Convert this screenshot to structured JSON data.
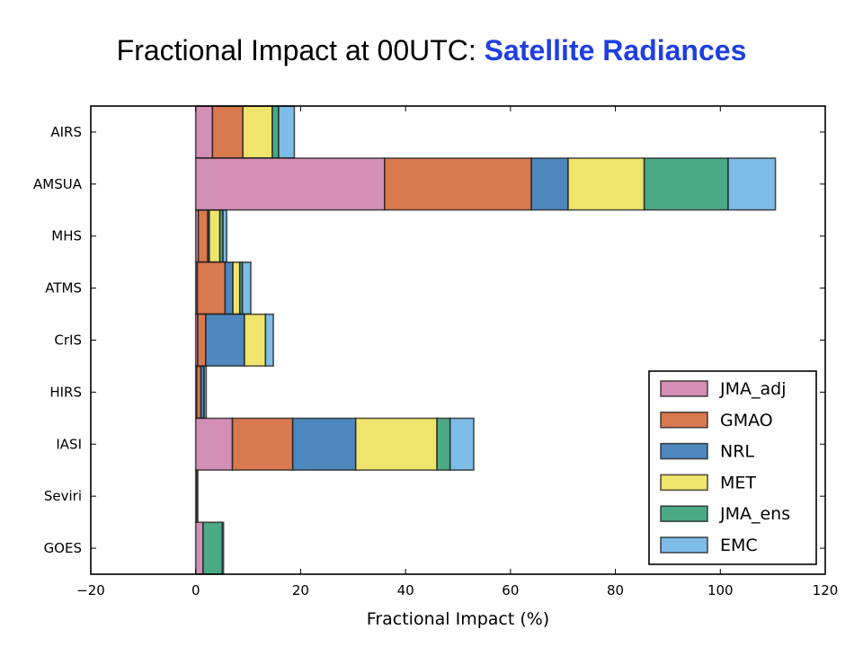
{
  "title": {
    "prefix": "Fractional Impact at 00UTC: ",
    "highlight": "Satellite Radiances"
  },
  "colors": {
    "title_highlight": "#1f3fe0"
  },
  "chart_data": {
    "type": "bar",
    "orientation": "horizontal",
    "stacked": true,
    "categories": [
      "AIRS",
      "AMSUA",
      "MHS",
      "ATMS",
      "CrIS",
      "HIRS",
      "IASI",
      "Seviri",
      "GOES"
    ],
    "series": [
      {
        "name": "JMA_adj",
        "color": "#d38fb6",
        "values": [
          3.2,
          36.0,
          0.5,
          0.3,
          0.4,
          0.2,
          7.0,
          0.2,
          1.4
        ]
      },
      {
        "name": "GMAO",
        "color": "#d9794f",
        "values": [
          5.8,
          28.0,
          1.8,
          5.3,
          1.5,
          0.8,
          11.5,
          0.2,
          0.0
        ]
      },
      {
        "name": "NRL",
        "color": "#4e87bd",
        "values": [
          0.0,
          7.0,
          0.3,
          1.5,
          7.4,
          0.6,
          12.0,
          0.0,
          0.0
        ]
      },
      {
        "name": "MET",
        "color": "#f0e56c",
        "values": [
          5.6,
          14.5,
          2.0,
          1.3,
          4.0,
          0.0,
          15.5,
          0.0,
          0.0
        ]
      },
      {
        "name": "JMA_ens",
        "color": "#4aaa86",
        "values": [
          1.2,
          16.0,
          0.6,
          0.5,
          0.0,
          0.0,
          2.5,
          0.0,
          3.7
        ]
      },
      {
        "name": "EMC",
        "color": "#7ebde6",
        "values": [
          3.0,
          9.0,
          0.7,
          1.6,
          1.5,
          0.4,
          4.5,
          0.0,
          0.2
        ]
      }
    ],
    "xlabel": "Fractional Impact (%)",
    "ylabel": "",
    "xlim": [
      -20,
      120
    ],
    "xticks": [
      -20,
      0,
      20,
      40,
      60,
      80,
      100,
      120
    ],
    "xtick_labels": [
      "−20",
      "0",
      "20",
      "40",
      "60",
      "80",
      "100",
      "120"
    ],
    "grid": false,
    "legend_position": "lower-right"
  }
}
